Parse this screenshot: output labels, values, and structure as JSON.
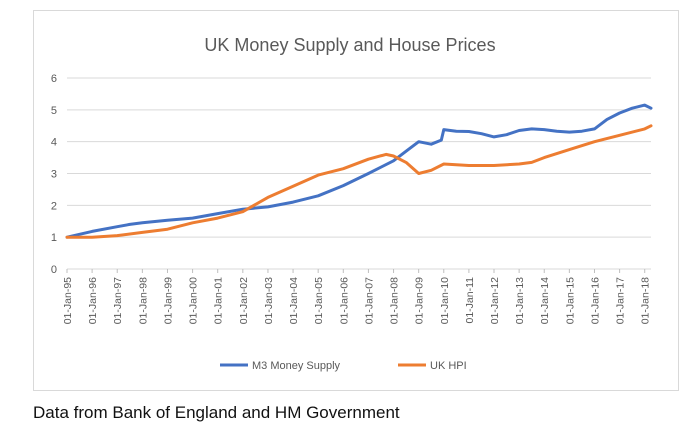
{
  "chart_data": {
    "type": "line",
    "title": "UK Money Supply and House Prices",
    "xlabel": "",
    "ylabel": "",
    "ylim": [
      0,
      6
    ],
    "yticks": [
      0,
      1,
      2,
      3,
      4,
      5,
      6
    ],
    "xlim": [
      1995,
      2018.25
    ],
    "xtick_labels": [
      "01-Jan-95",
      "01-Jan-96",
      "01-Jan-97",
      "01-Jan-98",
      "01-Jan-99",
      "01-Jan-00",
      "01-Jan-01",
      "01-Jan-02",
      "01-Jan-03",
      "01-Jan-04",
      "01-Jan-05",
      "01-Jan-06",
      "01-Jan-07",
      "01-Jan-08",
      "01-Jan-09",
      "01-Jan-10",
      "01-Jan-11",
      "01-Jan-12",
      "01-Jan-13",
      "01-Jan-14",
      "01-Jan-15",
      "01-Jan-16",
      "01-Jan-17",
      "01-Jan-18"
    ],
    "grid": true,
    "legend_position": "bottom",
    "series": [
      {
        "name": "M3 Money Supply",
        "color": "#4472c4",
        "x": [
          1995,
          1996,
          1997,
          1997.5,
          1998,
          1999,
          2000,
          2001,
          2002,
          2003,
          2004,
          2005,
          2006,
          2007,
          2008,
          2008.5,
          2009,
          2009.5,
          2009.9,
          2010,
          2010.5,
          2011,
          2011.5,
          2012,
          2012.5,
          2013,
          2013.5,
          2014,
          2014.5,
          2015,
          2015.5,
          2016,
          2016.5,
          2017,
          2017.5,
          2018,
          2018.25
        ],
        "y": [
          1.0,
          1.18,
          1.33,
          1.4,
          1.45,
          1.53,
          1.6,
          1.74,
          1.88,
          1.95,
          2.1,
          2.3,
          2.62,
          3.0,
          3.4,
          3.7,
          4.0,
          3.92,
          4.05,
          4.38,
          4.33,
          4.32,
          4.25,
          4.15,
          4.22,
          4.35,
          4.4,
          4.38,
          4.33,
          4.3,
          4.33,
          4.4,
          4.7,
          4.9,
          5.05,
          5.15,
          5.05
        ]
      },
      {
        "name": "UK HPI",
        "color": "#ed7d31",
        "x": [
          1995,
          1996,
          1997,
          1998,
          1999,
          2000,
          2001,
          2002,
          2003,
          2004,
          2005,
          2006,
          2007,
          2007.7,
          2008,
          2008.5,
          2009,
          2009.5,
          2010,
          2011,
          2012,
          2013,
          2013.5,
          2014,
          2015,
          2016,
          2017,
          2018,
          2018.25
        ],
        "y": [
          1.0,
          1.0,
          1.05,
          1.15,
          1.25,
          1.45,
          1.6,
          1.8,
          2.25,
          2.6,
          2.95,
          3.15,
          3.45,
          3.6,
          3.55,
          3.35,
          3.0,
          3.1,
          3.3,
          3.25,
          3.25,
          3.3,
          3.35,
          3.5,
          3.75,
          4.0,
          4.2,
          4.4,
          4.5
        ]
      }
    ]
  },
  "caption": "Data from Bank of England and HM Government"
}
